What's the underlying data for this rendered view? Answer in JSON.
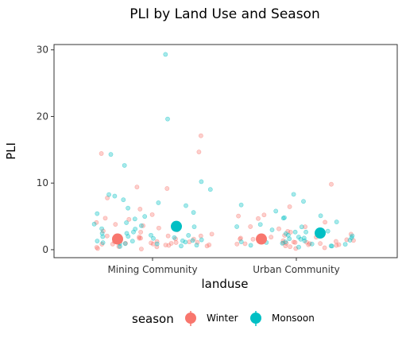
{
  "chart_data": {
    "type": "scatter",
    "title": "PLI by Land Use and Season",
    "xlabel": "landuse",
    "ylabel": "PLI",
    "categories": [
      "Mining Community",
      "Urban Community"
    ],
    "ylim": [
      -1.2,
      30.8
    ],
    "yticks": [
      0,
      10,
      20,
      30
    ],
    "grid": false,
    "legend": {
      "title": "season",
      "placement": "bottom"
    },
    "series": [
      {
        "name": "Winter",
        "color": "#F8766D",
        "mean": [
          1.6,
          1.6
        ],
        "points": [
          [
            "Mining Community",
            14.8
          ],
          [
            "Mining Community",
            14.4
          ],
          [
            "Mining Community",
            17.0
          ],
          [
            "Mining Community",
            9.4
          ],
          [
            "Mining Community",
            9.1
          ],
          [
            "Mining Community",
            7.9
          ],
          [
            "Mining Community",
            6.0
          ],
          [
            "Mining Community",
            5.2
          ],
          [
            "Mining Community",
            4.8
          ],
          [
            "Mining Community",
            4.5
          ],
          [
            "Mining Community",
            4.2
          ],
          [
            "Mining Community",
            3.9
          ],
          [
            "Mining Community",
            3.5
          ],
          [
            "Mining Community",
            3.2
          ],
          [
            "Mining Community",
            3.0
          ],
          [
            "Mining Community",
            2.7
          ],
          [
            "Mining Community",
            2.5
          ],
          [
            "Mining Community",
            2.3
          ],
          [
            "Mining Community",
            2.1
          ],
          [
            "Mining Community",
            2.0
          ],
          [
            "Mining Community",
            1.9
          ],
          [
            "Mining Community",
            1.8
          ],
          [
            "Mining Community",
            1.7
          ],
          [
            "Mining Community",
            1.6
          ],
          [
            "Mining Community",
            1.5
          ],
          [
            "Mining Community",
            1.4
          ],
          [
            "Mining Community",
            1.3
          ],
          [
            "Mining Community",
            1.2
          ],
          [
            "Mining Community",
            1.1
          ],
          [
            "Mining Community",
            1.0
          ],
          [
            "Mining Community",
            0.9
          ],
          [
            "Mining Community",
            0.8
          ],
          [
            "Mining Community",
            0.7
          ],
          [
            "Mining Community",
            0.6
          ],
          [
            "Mining Community",
            0.5
          ],
          [
            "Mining Community",
            0.4
          ],
          [
            "Mining Community",
            0.3
          ],
          [
            "Mining Community",
            0.2
          ],
          [
            "Mining Community",
            1.2
          ],
          [
            "Mining Community",
            0.9
          ],
          [
            "Mining Community",
            1.5
          ],
          [
            "Mining Community",
            0.6
          ],
          [
            "Mining Community",
            1.0
          ],
          [
            "Mining Community",
            0.8
          ],
          [
            "Mining Community",
            1.3
          ],
          [
            "Mining Community",
            2.2
          ],
          [
            "Mining Community",
            0.5
          ],
          [
            "Mining Community",
            1.1
          ],
          [
            "Urban Community",
            9.7
          ],
          [
            "Urban Community",
            6.3
          ],
          [
            "Urban Community",
            5.2
          ],
          [
            "Urban Community",
            5.0
          ],
          [
            "Urban Community",
            4.6
          ],
          [
            "Urban Community",
            4.0
          ],
          [
            "Urban Community",
            3.6
          ],
          [
            "Urban Community",
            3.3
          ],
          [
            "Urban Community",
            3.0
          ],
          [
            "Urban Community",
            2.7
          ],
          [
            "Urban Community",
            2.4
          ],
          [
            "Urban Community",
            2.2
          ],
          [
            "Urban Community",
            2.0
          ],
          [
            "Urban Community",
            1.9
          ],
          [
            "Urban Community",
            1.8
          ],
          [
            "Urban Community",
            1.7
          ],
          [
            "Urban Community",
            1.6
          ],
          [
            "Urban Community",
            1.5
          ],
          [
            "Urban Community",
            1.4
          ],
          [
            "Urban Community",
            1.3
          ],
          [
            "Urban Community",
            1.2
          ],
          [
            "Urban Community",
            1.1
          ],
          [
            "Urban Community",
            1.0
          ],
          [
            "Urban Community",
            0.9
          ],
          [
            "Urban Community",
            0.8
          ],
          [
            "Urban Community",
            0.7
          ],
          [
            "Urban Community",
            0.6
          ],
          [
            "Urban Community",
            0.5
          ],
          [
            "Urban Community",
            0.4
          ],
          [
            "Urban Community",
            0.3
          ],
          [
            "Urban Community",
            1.2
          ],
          [
            "Urban Community",
            0.9
          ],
          [
            "Urban Community",
            1.5
          ],
          [
            "Urban Community",
            0.7
          ],
          [
            "Urban Community",
            1.0
          ],
          [
            "Urban Community",
            2.6
          ],
          [
            "Urban Community",
            1.3
          ],
          [
            "Urban Community",
            0.8
          ],
          [
            "Urban Community",
            1.1
          ]
        ]
      },
      {
        "name": "Monsoon",
        "color": "#00BFC4",
        "mean": [
          3.5,
          2.5
        ],
        "points": [
          [
            "Mining Community",
            29.2
          ],
          [
            "Mining Community",
            19.5
          ],
          [
            "Mining Community",
            14.3
          ],
          [
            "Mining Community",
            12.8
          ],
          [
            "Mining Community",
            10.2
          ],
          [
            "Mining Community",
            9.0
          ],
          [
            "Mining Community",
            8.3
          ],
          [
            "Mining Community",
            8.1
          ],
          [
            "Mining Community",
            7.6
          ],
          [
            "Mining Community",
            7.0
          ],
          [
            "Mining Community",
            6.5
          ],
          [
            "Mining Community",
            6.2
          ],
          [
            "Mining Community",
            5.6
          ],
          [
            "Mining Community",
            5.3
          ],
          [
            "Mining Community",
            4.9
          ],
          [
            "Mining Community",
            4.6
          ],
          [
            "Mining Community",
            4.2
          ],
          [
            "Mining Community",
            3.9
          ],
          [
            "Mining Community",
            3.6
          ],
          [
            "Mining Community",
            3.3
          ],
          [
            "Mining Community",
            3.0
          ],
          [
            "Mining Community",
            2.8
          ],
          [
            "Mining Community",
            2.5
          ],
          [
            "Mining Community",
            2.3
          ],
          [
            "Mining Community",
            2.1
          ],
          [
            "Mining Community",
            1.9
          ],
          [
            "Mining Community",
            1.8
          ],
          [
            "Mining Community",
            1.6
          ],
          [
            "Mining Community",
            1.5
          ],
          [
            "Mining Community",
            1.4
          ],
          [
            "Mining Community",
            1.3
          ],
          [
            "Mining Community",
            1.2
          ],
          [
            "Mining Community",
            1.1
          ],
          [
            "Mining Community",
            1.0
          ],
          [
            "Mining Community",
            0.9
          ],
          [
            "Mining Community",
            0.8
          ],
          [
            "Mining Community",
            0.7
          ],
          [
            "Mining Community",
            0.6
          ],
          [
            "Mining Community",
            0.5
          ],
          [
            "Mining Community",
            2.0
          ],
          [
            "Mining Community",
            1.5
          ],
          [
            "Mining Community",
            2.4
          ],
          [
            "Mining Community",
            1.7
          ],
          [
            "Mining Community",
            3.1
          ],
          [
            "Mining Community",
            1.2
          ],
          [
            "Urban Community",
            8.3
          ],
          [
            "Urban Community",
            7.2
          ],
          [
            "Urban Community",
            6.6
          ],
          [
            "Urban Community",
            5.9
          ],
          [
            "Urban Community",
            5.2
          ],
          [
            "Urban Community",
            4.9
          ],
          [
            "Urban Community",
            4.6
          ],
          [
            "Urban Community",
            4.1
          ],
          [
            "Urban Community",
            3.7
          ],
          [
            "Urban Community",
            3.4
          ],
          [
            "Urban Community",
            3.1
          ],
          [
            "Urban Community",
            2.8
          ],
          [
            "Urban Community",
            2.5
          ],
          [
            "Urban Community",
            2.3
          ],
          [
            "Urban Community",
            2.1
          ],
          [
            "Urban Community",
            1.9
          ],
          [
            "Urban Community",
            1.8
          ],
          [
            "Urban Community",
            1.6
          ],
          [
            "Urban Community",
            1.5
          ],
          [
            "Urban Community",
            1.4
          ],
          [
            "Urban Community",
            1.3
          ],
          [
            "Urban Community",
            1.2
          ],
          [
            "Urban Community",
            1.1
          ],
          [
            "Urban Community",
            1.0
          ],
          [
            "Urban Community",
            0.9
          ],
          [
            "Urban Community",
            0.8
          ],
          [
            "Urban Community",
            0.7
          ],
          [
            "Urban Community",
            0.6
          ],
          [
            "Urban Community",
            0.5
          ],
          [
            "Urban Community",
            2.0
          ],
          [
            "Urban Community",
            1.6
          ],
          [
            "Urban Community",
            2.6
          ],
          [
            "Urban Community",
            1.2
          ],
          [
            "Urban Community",
            3.3
          ],
          [
            "Urban Community",
            0.9
          ],
          [
            "Urban Community",
            1.7
          ]
        ]
      }
    ]
  }
}
